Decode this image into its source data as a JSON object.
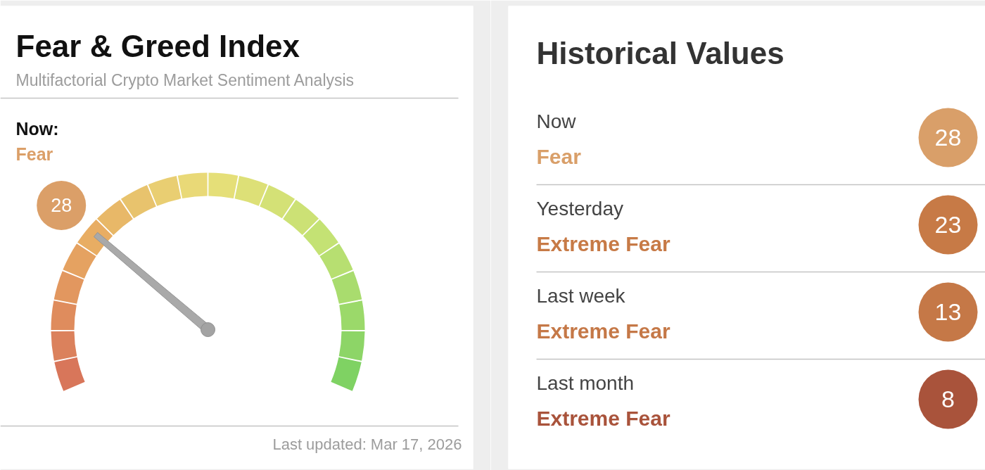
{
  "chart_data": [
    {
      "type": "other",
      "title": "Fear & Greed Index",
      "subtitle": "Multifactorial Crypto Market Sentiment Analysis",
      "series": [
        {
          "name": "Fear",
          "color": "#db9f68",
          "values": [
            28
          ]
        }
      ],
      "data_labels": true,
      "annotations": [
        "Now:",
        "Last updated: Mar 17, 2026"
      ]
    },
    {
      "type": "other",
      "title": "Historical Values",
      "categories": [
        "Now",
        "Yesterday",
        "Last week",
        "Last month"
      ],
      "values": [
        28,
        23,
        13,
        8
      ],
      "colors": [
        "#d99f69",
        "#c77a46",
        "#c57847",
        "#a9533b"
      ],
      "data_labels": true,
      "annotations": [
        "Fear",
        "Extreme Fear",
        "Extreme Fear",
        "Extreme Fear"
      ]
    }
  ]
}
